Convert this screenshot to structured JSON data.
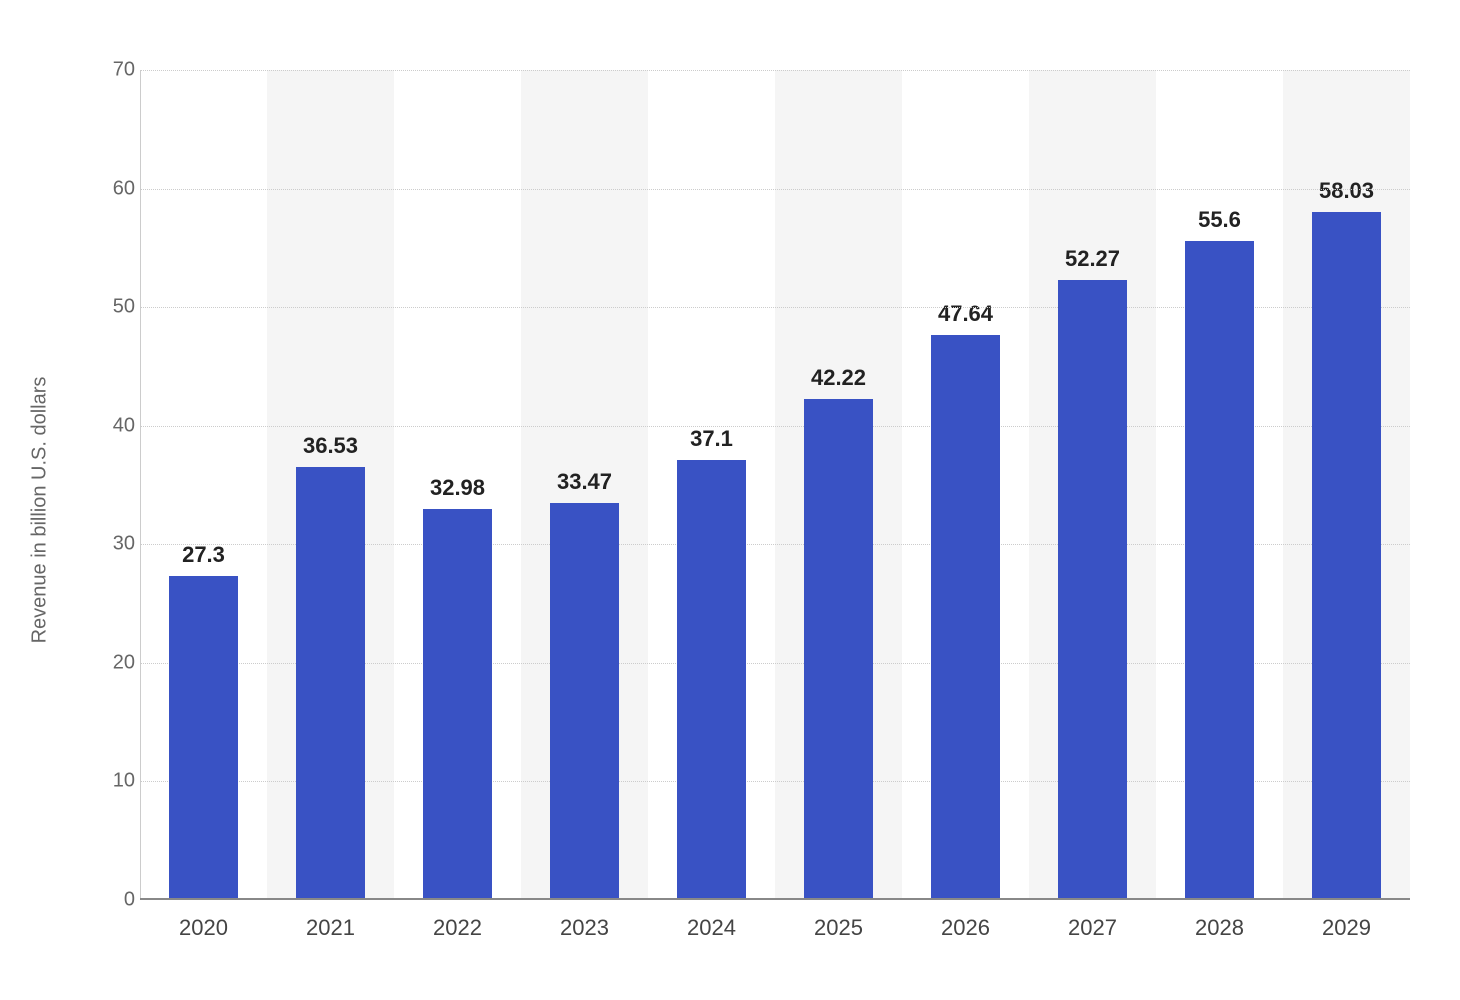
{
  "chart": {
    "type": "bar",
    "ylabel": "Revenue in billion U.S. dollars",
    "ylabel_fontsize": 20,
    "ylabel_color": "#666666",
    "categories": [
      "2020",
      "2021",
      "2022",
      "2023",
      "2024",
      "2025",
      "2026",
      "2027",
      "2028",
      "2029"
    ],
    "values": [
      27.3,
      36.53,
      32.98,
      33.47,
      37.1,
      42.22,
      47.64,
      52.27,
      55.6,
      58.03
    ],
    "value_labels": [
      "27.3",
      "36.53",
      "32.98",
      "33.47",
      "37.1",
      "42.22",
      "47.64",
      "52.27",
      "55.6",
      "58.03"
    ],
    "bar_color": "#3952c4",
    "ylim": [
      0,
      70
    ],
    "yticks": [
      0,
      10,
      20,
      30,
      40,
      50,
      60,
      70
    ],
    "grid_color": "#cccccc",
    "grid_style": "dotted",
    "background_color": "#ffffff",
    "alt_stripe_color": "#f5f5f5",
    "axis_line_color": "#888888",
    "bar_width_ratio": 0.55,
    "label_fontsize": 22,
    "label_fontweight": 600,
    "label_color": "#222222",
    "xtick_fontsize": 22,
    "xtick_color": "#444444",
    "ytick_fontsize": 20,
    "ytick_color": "#666666"
  }
}
